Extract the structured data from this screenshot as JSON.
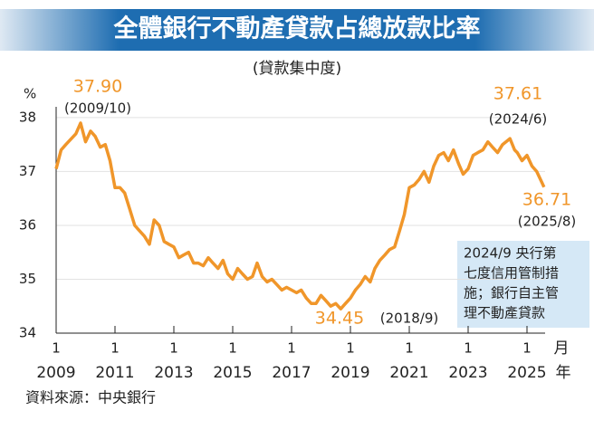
{
  "chart_data": {
    "type": "line",
    "title": "全體銀行不動產貸款占總放款比率",
    "subtitle": "(貸款集中度)",
    "y_unit": "%",
    "x_unit_month": "月",
    "x_unit_year": "年",
    "xtick_month_label": "1",
    "xlim": [
      2009,
      2025.9
    ],
    "ylim": [
      34,
      38.2
    ],
    "yticks": [
      34,
      35,
      36,
      37,
      38
    ],
    "xticks": [
      {
        "value": 2009,
        "label": "2009"
      },
      {
        "value": 2011,
        "label": "2011"
      },
      {
        "value": 2013,
        "label": "2013"
      },
      {
        "value": 2015,
        "label": "2015"
      },
      {
        "value": 2017,
        "label": "2017"
      },
      {
        "value": 2019,
        "label": "2019"
      },
      {
        "value": 2021,
        "label": "2021"
      },
      {
        "value": 2023,
        "label": "2023"
      },
      {
        "value": 2025,
        "label": "2025"
      }
    ],
    "grid": true,
    "color": "#f0962a",
    "x": [
      2009.0,
      2009.17,
      2009.33,
      2009.5,
      2009.67,
      2009.83,
      2010.0,
      2010.17,
      2010.33,
      2010.5,
      2010.67,
      2010.83,
      2011.0,
      2011.17,
      2011.33,
      2011.5,
      2011.67,
      2011.83,
      2012.0,
      2012.17,
      2012.33,
      2012.5,
      2012.67,
      2012.83,
      2013.0,
      2013.17,
      2013.33,
      2013.5,
      2013.67,
      2013.83,
      2014.0,
      2014.17,
      2014.33,
      2014.5,
      2014.67,
      2014.83,
      2015.0,
      2015.17,
      2015.33,
      2015.5,
      2015.67,
      2015.83,
      2016.0,
      2016.17,
      2016.33,
      2016.5,
      2016.67,
      2016.83,
      2017.0,
      2017.17,
      2017.33,
      2017.5,
      2017.67,
      2017.83,
      2018.0,
      2018.17,
      2018.33,
      2018.5,
      2018.67,
      2018.83,
      2019.0,
      2019.17,
      2019.33,
      2019.5,
      2019.67,
      2019.83,
      2020.0,
      2020.17,
      2020.33,
      2020.5,
      2020.67,
      2020.83,
      2021.0,
      2021.17,
      2021.33,
      2021.5,
      2021.67,
      2021.83,
      2022.0,
      2022.17,
      2022.33,
      2022.5,
      2022.67,
      2022.83,
      2023.0,
      2023.17,
      2023.33,
      2023.5,
      2023.67,
      2023.83,
      2024.0,
      2024.17,
      2024.42,
      2024.58,
      2024.67,
      2024.83,
      2025.0,
      2025.17,
      2025.33,
      2025.5,
      2025.58
    ],
    "values": [
      37.05,
      37.4,
      37.5,
      37.6,
      37.7,
      37.9,
      37.55,
      37.75,
      37.65,
      37.45,
      37.5,
      37.2,
      36.7,
      36.7,
      36.6,
      36.3,
      36.0,
      35.9,
      35.8,
      35.65,
      36.1,
      36.0,
      35.7,
      35.65,
      35.6,
      35.4,
      35.45,
      35.5,
      35.3,
      35.3,
      35.25,
      35.4,
      35.3,
      35.2,
      35.35,
      35.1,
      35.0,
      35.2,
      35.1,
      35.0,
      35.05,
      35.3,
      35.05,
      34.95,
      35.0,
      34.9,
      34.8,
      34.85,
      34.8,
      34.75,
      34.8,
      34.65,
      34.55,
      34.55,
      34.7,
      34.6,
      34.5,
      34.55,
      34.45,
      34.55,
      34.65,
      34.8,
      34.9,
      35.05,
      34.95,
      35.2,
      35.35,
      35.45,
      35.55,
      35.6,
      35.9,
      36.2,
      36.7,
      36.75,
      36.85,
      37.0,
      36.8,
      37.1,
      37.3,
      37.35,
      37.2,
      37.4,
      37.15,
      36.95,
      37.05,
      37.3,
      37.35,
      37.4,
      37.55,
      37.45,
      37.35,
      37.5,
      37.61,
      37.4,
      37.35,
      37.2,
      37.3,
      37.1,
      37.0,
      36.8,
      36.71
    ],
    "annotations": [
      {
        "value": "37.90",
        "date": "(2009/10)"
      },
      {
        "value": "34.45",
        "date": "(2018/9)"
      },
      {
        "value": "37.61",
        "date": "(2024/6)"
      },
      {
        "value": "36.71",
        "date": "(2025/8)"
      }
    ],
    "note": [
      "2024/9 央行第",
      "七度信用管制措",
      "施；銀行自主管",
      "理不動產貸款"
    ],
    "source": "資料來源：中央銀行"
  }
}
